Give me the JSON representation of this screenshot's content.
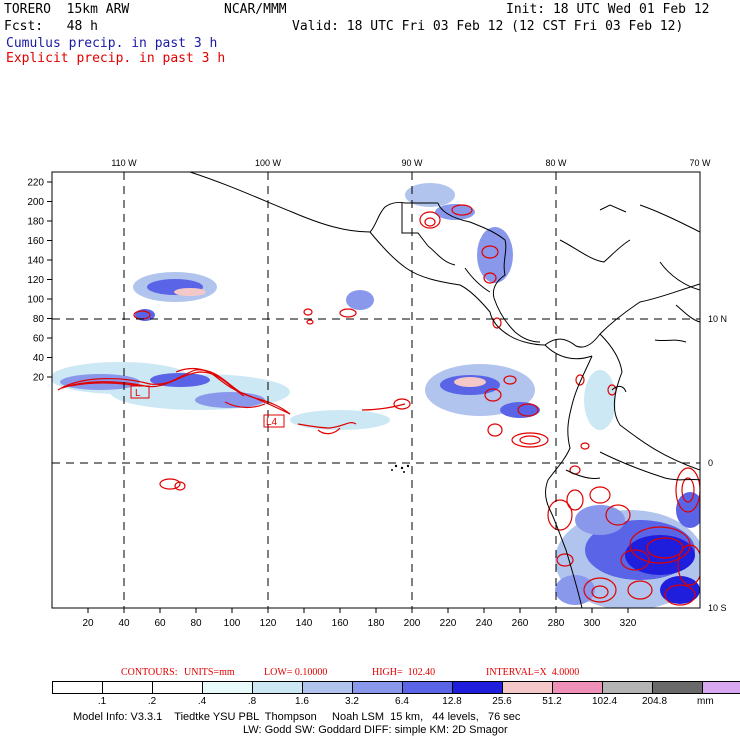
{
  "header": {
    "line1_left": "TORERO  15km ARW",
    "line1_mid": "NCAR/MMM",
    "line1_right": "Init: 18 UTC Wed 01 Feb 12",
    "line2_left": "Fcst:   48 h",
    "line2_right": "Valid: 18 UTC Fri 03 Feb 12 (12 CST Fri 03 Feb 12)",
    "legend_blue": "Cumulus precip. in past 3 h",
    "legend_red": "Explicit precip. in past 3 h"
  },
  "map": {
    "lon_labels": [
      "110 W",
      "100 W",
      "90 W",
      "80 W",
      "70 W"
    ],
    "lat_labels": [
      "10 N",
      "0",
      "10 S"
    ],
    "y_ticks": [
      "220",
      "200",
      "180",
      "160",
      "140",
      "120",
      "100",
      "80",
      "60",
      "40",
      "20"
    ],
    "x_ticks": [
      "20",
      "40",
      "60",
      "80",
      "100",
      "120",
      "140",
      "160",
      "180",
      "200",
      "220",
      "240",
      "260",
      "280",
      "300",
      "320"
    ],
    "low_markers": [
      "L",
      "L4"
    ]
  },
  "contours_line": {
    "contours": "CONTOURS:",
    "units": "UNITS=mm",
    "low": "LOW= 0.10000",
    "high": "HIGH=  102.40",
    "interval": "INTERVAL=X  4.0000"
  },
  "colorbar": {
    "labels": [
      ".1",
      ".2",
      ".4",
      ".8",
      "1.6",
      "3.2",
      "6.4",
      "12.8",
      "25.6",
      "51.2",
      "102.4",
      "204.8"
    ],
    "unit": "mm",
    "colors": [
      "#ffffff",
      "#ffffff",
      "#ffffff",
      "#e8fafa",
      "#cce8f4",
      "#b0c4ee",
      "#8a98ec",
      "#5a64e6",
      "#1e1edc",
      "#f4c8c8",
      "#ee90b8",
      "#b4b4b4",
      "#6a6a6a",
      "#d8a8f0"
    ]
  },
  "footer": {
    "line1": "Model Info: V3.3.1    Tiedtke YSU PBL  Thompson     Noah LSM  15 km,   44 levels,   76 sec",
    "line2": "LW: Godd SW: Goddard DIFF: simple KM: 2D Smagor"
  }
}
